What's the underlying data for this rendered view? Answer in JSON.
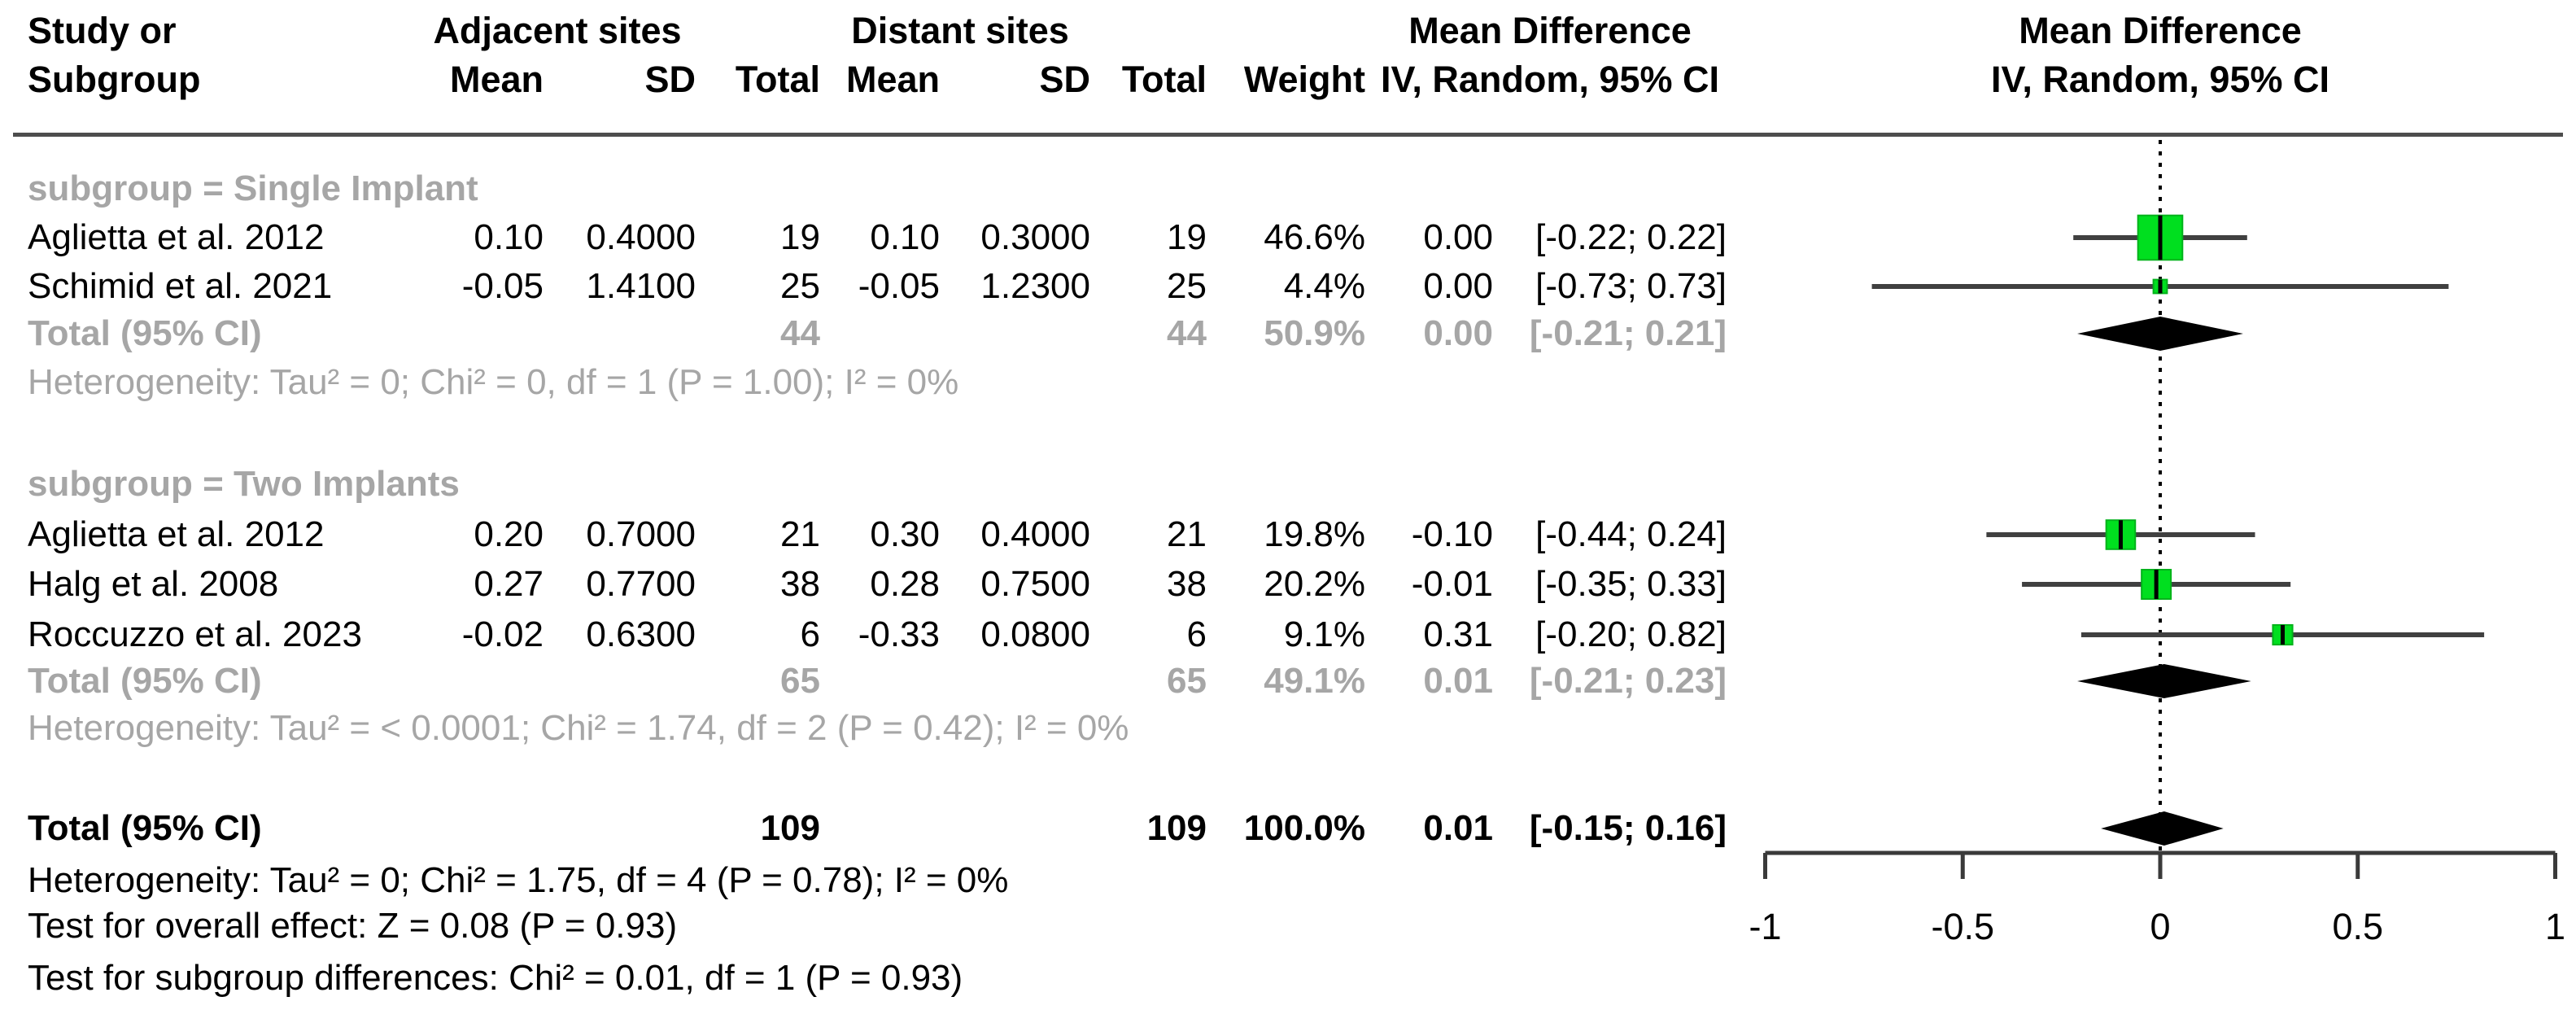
{
  "header": {
    "study_line1": "Study or",
    "study_line2": "Subgroup",
    "group1_title": "Adjacent sites",
    "group2_title": "Distant sites",
    "col_mean": "Mean",
    "col_sd": "SD",
    "col_total": "Total",
    "col_weight": "Weight",
    "md_title": "Mean Difference",
    "md_subtitle": "IV, Random, 95% CI",
    "plot_title": "Mean Difference",
    "plot_subtitle": "IV, Random, 95% CI"
  },
  "rows": [
    {
      "type": "subgroup",
      "label": "subgroup = Single Implant"
    },
    {
      "type": "study",
      "label": "Aglietta et al. 2012",
      "mean1": "0.10",
      "sd1": "0.4000",
      "total1": "19",
      "mean2": "0.10",
      "sd2": "0.3000",
      "total2": "19",
      "weight": "46.6%",
      "md": "0.00",
      "ci": "[-0.22; 0.22]"
    },
    {
      "type": "study",
      "label": "Schimid et al. 2021",
      "mean1": "-0.05",
      "sd1": "1.4100",
      "total1": "25",
      "mean2": "-0.05",
      "sd2": "1.2300",
      "total2": "25",
      "weight": "4.4%",
      "md": "0.00",
      "ci": "[-0.73; 0.73]"
    },
    {
      "type": "subtotal",
      "label": "Total (95% CI)",
      "total1": "44",
      "total2": "44",
      "weight": "50.9%",
      "md": "0.00",
      "ci": "[-0.21; 0.21]"
    },
    {
      "type": "het",
      "label": "Heterogeneity: Tau² = 0; Chi² = 0, df = 1 (P = 1.00); I² = 0%"
    },
    {
      "type": "subgroup",
      "label": "subgroup = Two Implants"
    },
    {
      "type": "study",
      "label": "Aglietta et al. 2012",
      "mean1": "0.20",
      "sd1": "0.7000",
      "total1": "21",
      "mean2": "0.30",
      "sd2": "0.4000",
      "total2": "21",
      "weight": "19.8%",
      "md": "-0.10",
      "ci": "[-0.44; 0.24]"
    },
    {
      "type": "study",
      "label": "Halg et al. 2008",
      "mean1": "0.27",
      "sd1": "0.7700",
      "total1": "38",
      "mean2": "0.28",
      "sd2": "0.7500",
      "total2": "38",
      "weight": "20.2%",
      "md": "-0.01",
      "ci": "[-0.35; 0.33]"
    },
    {
      "type": "study",
      "label": "Roccuzzo et al. 2023",
      "mean1": "-0.02",
      "sd1": "0.6300",
      "total1": "6",
      "mean2": "-0.33",
      "sd2": "0.0800",
      "total2": "6",
      "weight": "9.1%",
      "md": "0.31",
      "ci": "[-0.20; 0.82]"
    },
    {
      "type": "subtotal",
      "label": "Total (95% CI)",
      "total1": "65",
      "total2": "65",
      "weight": "49.1%",
      "md": "0.01",
      "ci": "[-0.21; 0.23]"
    },
    {
      "type": "het",
      "label": "Heterogeneity: Tau² = < 0.0001; Chi² = 1.74, df = 2 (P = 0.42); I² = 0%"
    },
    {
      "type": "overall",
      "label": "Total (95% CI)",
      "total1": "109",
      "total2": "109",
      "weight": "100.0%",
      "md": "0.01",
      "ci": "[-0.15; 0.16]"
    },
    {
      "type": "note",
      "label": "Heterogeneity: Tau² = 0; Chi² = 1.75, df = 4 (P = 0.78); I² = 0%"
    },
    {
      "type": "note",
      "label": "Test for overall effect: Z = 0.08 (P = 0.93)"
    },
    {
      "type": "note",
      "label": "Test for subgroup differences: Chi² = 0.01, df = 1 (P = 0.93)"
    }
  ],
  "chart_data": {
    "type": "forest",
    "effect_measure": "Mean Difference",
    "model": "IV, Random, 95% CI",
    "xlim": [
      -1,
      1
    ],
    "x_ticks": [
      -1,
      -0.5,
      0,
      0.5,
      1
    ],
    "x_tick_labels": [
      "-1",
      "-0.5",
      "0",
      "0.5",
      "1"
    ],
    "null_value": 0,
    "subgroups": [
      {
        "name": "Single Implant",
        "studies": [
          {
            "label": "Aglietta et al. 2012",
            "est": 0.0,
            "low": -0.22,
            "high": 0.22,
            "weight_pct": 46.6
          },
          {
            "label": "Schimid et al. 2021",
            "est": 0.0,
            "low": -0.73,
            "high": 0.73,
            "weight_pct": 4.4
          }
        ],
        "pooled": {
          "est": 0.0,
          "low": -0.21,
          "high": 0.21,
          "weight_pct": 50.9
        },
        "heterogeneity": "Tau² = 0; Chi² = 0, df = 1 (P = 1.00); I² = 0%"
      },
      {
        "name": "Two Implants",
        "studies": [
          {
            "label": "Aglietta et al. 2012",
            "est": -0.1,
            "low": -0.44,
            "high": 0.24,
            "weight_pct": 19.8
          },
          {
            "label": "Halg et al. 2008",
            "est": -0.01,
            "low": -0.35,
            "high": 0.33,
            "weight_pct": 20.2
          },
          {
            "label": "Roccuzzo et al. 2023",
            "est": 0.31,
            "low": -0.2,
            "high": 0.82,
            "weight_pct": 9.1
          }
        ],
        "pooled": {
          "est": 0.01,
          "low": -0.21,
          "high": 0.23,
          "weight_pct": 49.1
        },
        "heterogeneity": "Tau² = < 0.0001; Chi² = 1.74, df = 2 (P = 0.42); I² = 0%"
      }
    ],
    "overall": {
      "est": 0.01,
      "low": -0.15,
      "high": 0.16,
      "weight_pct": 100.0
    },
    "tests": {
      "overall_effect": "Z = 0.08 (P = 0.93)",
      "subgroup_differences": "Chi² = 0.01, df = 1 (P = 0.93)"
    },
    "colors": {
      "square": "#00df1f",
      "diamond": "#000000",
      "ci_line": "#404040",
      "muted_text": "#a6a6a6"
    }
  }
}
